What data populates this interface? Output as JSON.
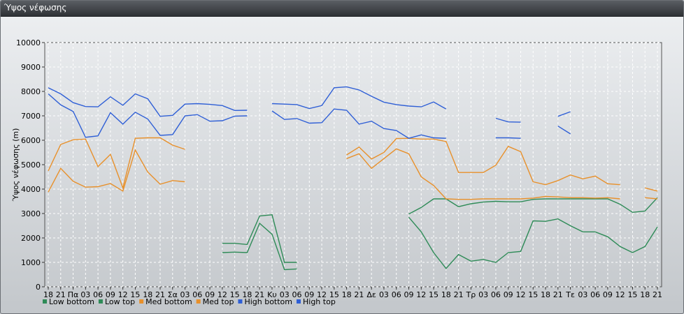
{
  "window": {
    "title": "Ύψος νέφωσης"
  },
  "chart_data": {
    "type": "line",
    "title": "",
    "xlabel": "",
    "ylabel": "Ύψος νέφωσης (m)",
    "ylim": [
      0,
      10000
    ],
    "yticks": [
      0,
      1000,
      2000,
      3000,
      4000,
      5000,
      6000,
      7000,
      8000,
      9000,
      10000
    ],
    "grid": true,
    "legend": "bottom-left",
    "categories": [
      "18",
      "21",
      "Πα",
      "03",
      "06",
      "09",
      "12",
      "15",
      "18",
      "21",
      "Σα",
      "03",
      "06",
      "09",
      "12",
      "15",
      "18",
      "21",
      "Κυ",
      "03",
      "06",
      "09",
      "12",
      "15",
      "18",
      "21",
      "Δε",
      "03",
      "06",
      "09",
      "12",
      "15",
      "18",
      "21",
      "Τρ",
      "03",
      "06",
      "09",
      "12",
      "15",
      "18",
      "21",
      "Τε",
      "03",
      "06",
      "09",
      "12",
      "15",
      "18",
      "21"
    ],
    "x_sub": [
      0,
      1,
      2,
      3,
      4,
      5,
      6,
      7,
      8,
      9,
      10,
      11,
      12,
      13,
      14,
      15,
      16,
      17,
      18,
      19,
      20,
      21,
      22,
      23,
      24,
      25,
      26,
      27,
      28,
      29,
      30,
      31,
      32,
      33,
      34,
      35,
      36,
      37,
      38,
      39,
      40,
      41,
      42,
      43,
      44,
      45,
      46,
      47,
      48,
      49,
      50,
      51,
      52,
      53,
      54,
      55,
      56,
      57,
      58,
      59,
      60,
      61,
      62,
      63,
      64,
      65,
      66,
      67,
      68,
      69,
      70,
      71,
      72,
      73,
      74,
      75,
      76,
      77,
      78,
      79,
      80,
      81,
      82,
      83,
      84,
      85,
      86,
      87,
      88,
      89,
      90,
      91,
      92,
      93,
      94,
      95,
      96,
      97,
      98,
      99,
      100,
      101,
      102,
      103,
      104,
      105,
      106,
      107,
      108,
      109,
      110,
      111,
      112,
      113,
      114,
      115,
      116,
      117,
      118,
      119,
      120,
      121,
      122,
      123,
      124,
      125,
      126,
      127,
      128,
      129,
      130,
      131,
      132,
      133,
      134,
      135,
      136,
      137,
      138,
      139,
      140,
      141,
      142,
      143,
      144,
      145,
      146,
      147,
      148,
      149,
      150,
      151,
      152,
      153,
      154,
      155,
      156,
      157,
      158,
      159,
      160,
      161,
      162,
      163,
      164,
      165,
      166,
      167,
      168,
      169,
      170,
      171,
      172,
      173,
      174,
      175,
      176,
      177,
      178,
      179,
      180,
      181,
      182,
      183,
      184,
      185,
      186,
      187,
      188,
      189,
      190,
      191,
      192,
      193,
      194,
      195,
      196,
      197,
      198,
      199,
      200,
      201,
      202,
      203,
      204,
      205,
      206,
      207,
      208,
      209,
      210,
      211,
      212,
      213,
      214,
      215,
      216,
      217,
      218,
      219,
      220,
      221,
      222,
      223,
      224,
      225,
      226,
      227,
      228,
      229,
      230,
      231,
      232,
      233,
      234,
      235,
      236,
      237,
      238,
      239,
      240,
      241,
      242,
      243,
      244,
      245,
      246,
      247,
      248,
      249,
      250,
      251,
      252,
      253,
      254,
      255,
      256,
      257,
      258,
      259,
      260,
      261,
      262,
      263,
      264,
      265,
      266,
      267,
      268,
      269,
      270,
      271,
      272,
      273,
      274,
      275,
      276,
      277,
      278,
      279,
      280,
      281,
      282,
      283,
      284,
      285,
      286,
      287,
      288,
      289,
      290,
      291,
      292,
      293,
      294,
      295,
      296,
      297,
      298,
      299,
      300,
      301,
      302,
      303,
      304,
      305,
      306,
      307,
      308,
      309,
      310,
      311,
      312,
      313,
      314,
      315,
      316,
      317,
      318,
      319,
      320,
      321,
      322,
      323,
      324,
      325,
      326,
      327,
      328,
      329,
      330,
      331,
      332,
      333,
      334,
      335,
      336,
      337,
      338,
      339,
      340,
      341,
      342,
      343,
      344,
      345,
      346,
      347,
      348,
      349,
      350,
      351,
      352,
      353,
      354,
      355,
      356,
      357,
      358,
      359,
      360,
      361,
      362,
      363,
      364,
      365,
      366,
      367,
      368,
      369,
      370,
      371,
      372,
      373,
      374,
      375,
      376,
      377,
      378,
      379,
      380,
      381,
      382,
      383,
      384,
      385,
      386,
      387,
      388,
      389,
      390,
      391,
      392,
      393,
      394,
      395,
      396,
      397,
      398,
      399,
      400,
      401,
      402,
      403,
      404,
      405,
      406,
      407,
      408,
      409,
      410,
      411,
      412,
      413,
      414,
      415,
      416,
      417,
      418,
      419,
      420,
      421,
      422,
      423,
      424,
      425,
      426,
      427,
      428,
      429,
      430,
      431,
      432,
      433,
      434,
      435,
      436,
      437,
      438,
      439,
      440,
      441,
      442,
      443,
      444,
      445,
      446,
      447,
      448,
      449,
      450,
      451,
      452,
      453,
      454,
      455,
      456,
      457,
      458,
      459,
      460,
      461,
      462,
      463,
      464,
      465,
      466,
      467,
      468,
      469,
      470,
      471,
      472,
      473,
      474,
      475,
      476,
      477,
      478,
      479,
      480,
      481,
      482,
      483,
      484,
      485,
      486,
      487,
      488,
      489,
      490,
      491,
      492,
      493,
      494,
      495,
      496,
      497,
      498,
      499,
      500,
      501,
      502,
      503,
      504,
      505,
      506,
      507,
      508,
      509,
      510,
      511,
      512,
      513,
      514,
      515,
      516,
      517,
      518,
      519,
      520,
      521,
      522,
      523,
      524,
      525,
      526,
      527,
      528,
      529,
      530,
      531,
      532,
      533,
      534,
      535,
      536,
      537,
      538,
      539,
      540,
      541,
      542,
      543,
      544,
      545,
      546,
      547,
      548,
      549,
      550,
      551,
      552,
      553,
      554,
      555,
      556,
      557,
      558,
      559,
      560,
      561,
      562,
      563,
      564,
      565,
      566,
      567,
      568,
      569,
      570,
      571,
      572,
      573,
      574,
      575,
      576,
      577,
      578,
      579,
      580,
      581,
      582,
      583,
      584,
      585,
      586,
      587,
      588,
      589,
      590,
      591,
      592,
      593,
      594,
      595,
      596,
      597,
      598,
      599,
      600,
      601,
      602,
      603,
      604,
      605,
      606,
      607,
      608,
      609,
      610,
      611,
      612,
      613,
      614,
      615,
      616,
      617,
      618,
      619,
      620,
      621,
      622,
      623,
      624,
      625,
      626,
      627,
      628,
      629,
      630,
      631,
      632,
      633,
      634,
      635,
      636,
      637,
      638,
      639,
      640,
      641,
      642,
      643,
      644,
      645,
      646,
      647,
      648,
      649,
      650,
      651,
      652,
      653,
      654,
      655,
      656,
      657,
      658,
      659,
      660,
      661,
      662,
      663,
      664,
      665,
      666,
      667,
      668,
      669,
      670,
      671,
      672,
      673,
      674,
      675,
      676,
      677,
      678,
      679,
      680,
      681,
      682,
      683,
      684,
      685,
      686,
      687,
      688,
      689,
      690,
      691,
      692,
      693,
      694,
      695,
      696,
      697,
      698,
      699,
      700,
      701,
      702,
      703,
      704,
      705,
      706,
      707,
      708,
      709,
      710,
      711,
      712,
      713,
      714,
      715,
      716,
      717,
      718,
      719,
      720,
      721,
      722,
      723,
      724,
      725,
      726,
      727,
      728,
      729,
      730,
      731,
      732,
      733,
      734,
      735,
      736,
      737,
      738,
      739,
      740,
      741,
      742,
      743,
      744,
      745,
      746,
      747,
      748,
      749,
      750,
      751,
      752,
      753,
      754,
      755,
      756,
      757,
      758,
      759,
      760,
      761,
      762,
      763,
      764,
      765,
      766,
      767,
      768,
      769,
      770,
      771,
      772,
      773,
      774,
      775,
      776,
      777,
      778,
      779,
      780,
      781,
      782,
      783,
      784,
      785,
      786,
      787,
      788,
      789,
      790,
      791,
      792,
      793,
      794,
      795,
      796,
      797,
      798,
      799,
      800,
      801,
      802,
      803,
      804,
      805,
      806,
      807,
      808,
      809,
      810,
      811,
      812,
      813,
      814,
      815,
      816,
      817,
      818,
      819,
      820,
      821,
      822,
      823,
      824,
      825,
      826,
      827,
      828,
      829,
      830,
      831,
      832,
      833,
      834,
      835,
      836,
      837,
      838,
      839,
      840,
      841,
      842,
      843,
      844,
      845,
      846,
      847,
      848,
      849,
      850,
      851,
      852,
      853,
      854,
      855,
      856,
      857,
      858,
      859,
      860,
      861,
      862,
      863,
      864,
      865,
      866,
      867,
      868,
      869,
      870,
      871,
      872,
      873,
      874,
      875,
      876,
      877,
      878,
      879,
      880,
      881,
      882,
      883,
      884,
      885,
      886,
      887,
      888,
      889,
      890,
      891,
      892,
      893,
      894,
      895,
      896,
      897,
      898,
      899,
      900,
      901,
      902,
      903,
      904,
      905,
      906,
      907,
      908,
      909,
      910,
      911,
      912,
      913,
      914,
      915,
      916,
      917,
      918,
      919,
      920,
      921,
      922,
      923,
      924,
      925,
      926,
      927,
      928,
      929,
      930,
      931,
      932,
      933,
      934,
      935,
      936,
      937,
      938,
      939,
      940,
      941,
      942,
      943,
      944,
      945,
      946,
      947,
      948,
      949,
      950,
      951,
      952,
      953,
      954,
      955,
      956,
      957,
      958,
      959,
      960,
      961,
      962,
      963,
      964,
      965,
      966,
      967,
      968,
      969,
      970,
      971,
      972,
      973,
      974,
      975,
      976,
      977,
      978,
      979,
      980,
      981,
      982,
      983,
      984,
      985,
      986,
      987,
      988,
      989,
      990,
      991,
      992,
      993,
      994,
      995,
      996,
      997,
      998,
      999
    ],
    "series": [
      {
        "name": "Low bottom",
        "color": "#2e8b57",
        "values": [
          null,
          null,
          null,
          null,
          null,
          null,
          null,
          null,
          null,
          null,
          null,
          null,
          null,
          null,
          1400,
          1420,
          1400,
          2600,
          2150,
          700,
          730,
          null,
          null,
          null,
          null,
          null,
          null,
          null,
          null,
          2850,
          2250,
          1400,
          750,
          1320,
          1050,
          1120,
          1000,
          1400,
          1450,
          2700,
          2680,
          2780,
          2500,
          2250,
          2250,
          2050,
          1650,
          1400,
          1650,
          2450
        ]
      },
      {
        "name": "Low top",
        "color": "#2e8b57",
        "values": [
          null,
          null,
          null,
          null,
          null,
          null,
          null,
          null,
          null,
          null,
          null,
          null,
          null,
          null,
          1780,
          1780,
          1730,
          2900,
          2950,
          1000,
          1000,
          null,
          null,
          null,
          null,
          null,
          null,
          null,
          null,
          2980,
          3250,
          3600,
          3600,
          3280,
          3400,
          3470,
          3500,
          3480,
          3480,
          3580,
          3600,
          3600,
          3600,
          3600,
          3600,
          3600,
          3380,
          3050,
          3100,
          3650
        ]
      },
      {
        "name": "Med bottom",
        "color": "#e8902a",
        "values": [
          3880,
          4850,
          4320,
          4080,
          4100,
          4230,
          3920,
          5600,
          4700,
          4200,
          4350,
          4300,
          null,
          null,
          null,
          null,
          null,
          null,
          null,
          null,
          null,
          null,
          null,
          null,
          5250,
          5450,
          4850,
          5250,
          5650,
          5450,
          4500,
          4150,
          3600,
          3580,
          3580,
          3600,
          3600,
          3600,
          3600,
          3630,
          3700,
          3680,
          3650,
          3650,
          3630,
          3650,
          3600,
          null,
          3650,
          3600
        ]
      },
      {
        "name": "Med top",
        "color": "#e8902a",
        "values": [
          4750,
          5830,
          6020,
          6050,
          4920,
          5420,
          4050,
          6080,
          6100,
          6100,
          5800,
          5630,
          null,
          null,
          null,
          null,
          null,
          null,
          null,
          null,
          null,
          null,
          null,
          null,
          5400,
          5720,
          5230,
          5500,
          6070,
          6080,
          6050,
          6050,
          5950,
          4680,
          4680,
          4680,
          4980,
          5750,
          5530,
          4300,
          4180,
          4350,
          4580,
          4420,
          4530,
          4220,
          4180,
          null,
          4050,
          3920
        ]
      },
      {
        "name": "High bottom",
        "color": "#2f5fd6",
        "values": [
          7900,
          7450,
          7180,
          6120,
          6180,
          7130,
          6660,
          7150,
          6870,
          6200,
          6230,
          7000,
          7050,
          6780,
          6800,
          6990,
          7000,
          null,
          7200,
          6850,
          6890,
          6700,
          6720,
          7280,
          7230,
          6660,
          6780,
          6480,
          6400,
          6080,
          6220,
          6100,
          6080,
          null,
          null,
          null,
          6100,
          6100,
          6080,
          null,
          null,
          6580,
          6260,
          null,
          null,
          null,
          null,
          null,
          null,
          null
        ]
      },
      {
        "name": "High top",
        "color": "#2f5fd6",
        "values": [
          8150,
          7900,
          7540,
          7380,
          7370,
          7780,
          7430,
          7900,
          7700,
          6980,
          7020,
          7480,
          7500,
          7470,
          7420,
          7220,
          7230,
          null,
          7500,
          7480,
          7460,
          7300,
          7420,
          8150,
          8190,
          8060,
          7800,
          7560,
          7460,
          7400,
          7370,
          7570,
          7280,
          null,
          null,
          null,
          6900,
          6750,
          6740,
          null,
          null,
          6980,
          7170,
          null,
          null,
          null,
          null,
          null,
          null,
          null
        ]
      }
    ]
  }
}
